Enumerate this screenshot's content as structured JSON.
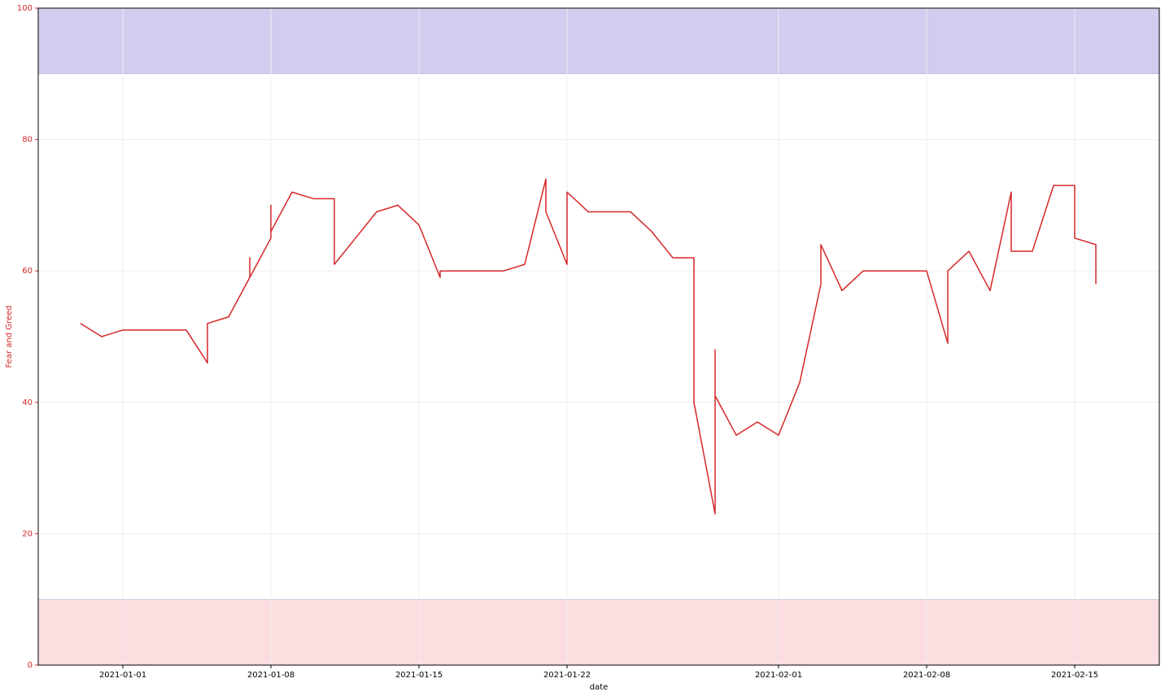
{
  "chart_data": {
    "type": "line",
    "x_label": "date",
    "y_label": "Fear and Greed",
    "xlim": [
      "2020-12-28",
      "2021-02-19"
    ],
    "xticks": [
      "2021-01-01",
      "2021-01-08",
      "2021-01-15",
      "2021-01-22",
      "2021-02-01",
      "2021-02-08",
      "2021-02-15"
    ],
    "ylim": [
      0,
      100
    ],
    "yticks": [
      0,
      20,
      40,
      60,
      80,
      100
    ],
    "grid": true,
    "axis_color": "#d62728",
    "bands": [
      {
        "range": [
          90,
          100
        ],
        "color": "#d2ccee"
      },
      {
        "range": [
          0,
          10
        ],
        "color": "#fcdde0"
      }
    ],
    "x": [
      "2020-12-30",
      "2020-12-31",
      "2021-01-01",
      "2021-01-02",
      "2021-01-03",
      "2021-01-04",
      "2021-01-05",
      "2021-01-05",
      "2021-01-06",
      "2021-01-07",
      "2021-01-07",
      "2021-01-07",
      "2021-01-08",
      "2021-01-08",
      "2021-01-08",
      "2021-01-09",
      "2021-01-10",
      "2021-01-11",
      "2021-01-11",
      "2021-01-12",
      "2021-01-13",
      "2021-01-14",
      "2021-01-15",
      "2021-01-16",
      "2021-01-16",
      "2021-01-17",
      "2021-01-18",
      "2021-01-19",
      "2021-01-20",
      "2021-01-21",
      "2021-01-21",
      "2021-01-22",
      "2021-01-22",
      "2021-01-23",
      "2021-01-24",
      "2021-01-25",
      "2021-01-26",
      "2021-01-27",
      "2021-01-28",
      "2021-01-28",
      "2021-01-29",
      "2021-01-29",
      "2021-01-29",
      "2021-01-30",
      "2021-01-31",
      "2021-02-01",
      "2021-02-02",
      "2021-02-03",
      "2021-02-03",
      "2021-02-04",
      "2021-02-05",
      "2021-02-06",
      "2021-02-07",
      "2021-02-08",
      "2021-02-09",
      "2021-02-09",
      "2021-02-10",
      "2021-02-11",
      "2021-02-12",
      "2021-02-12",
      "2021-02-13",
      "2021-02-14",
      "2021-02-15",
      "2021-02-15",
      "2021-02-16",
      "2021-02-16"
    ],
    "series": [
      {
        "name": "Fear and Greed",
        "color": "#d62728",
        "values": [
          52,
          50,
          51,
          51,
          51,
          51,
          46,
          52,
          53,
          59,
          62,
          59,
          65,
          70,
          66,
          72,
          71,
          71,
          61,
          65,
          69,
          70,
          67,
          59,
          60,
          60,
          60,
          60,
          61,
          74,
          69,
          61,
          72,
          69,
          69,
          69,
          66,
          62,
          62,
          40,
          23,
          48,
          41,
          35,
          37,
          35,
          43,
          58,
          64,
          57,
          60,
          60,
          60,
          60,
          49,
          60,
          63,
          57,
          72,
          63,
          63,
          73,
          73,
          65,
          64,
          58
        ]
      }
    ]
  }
}
